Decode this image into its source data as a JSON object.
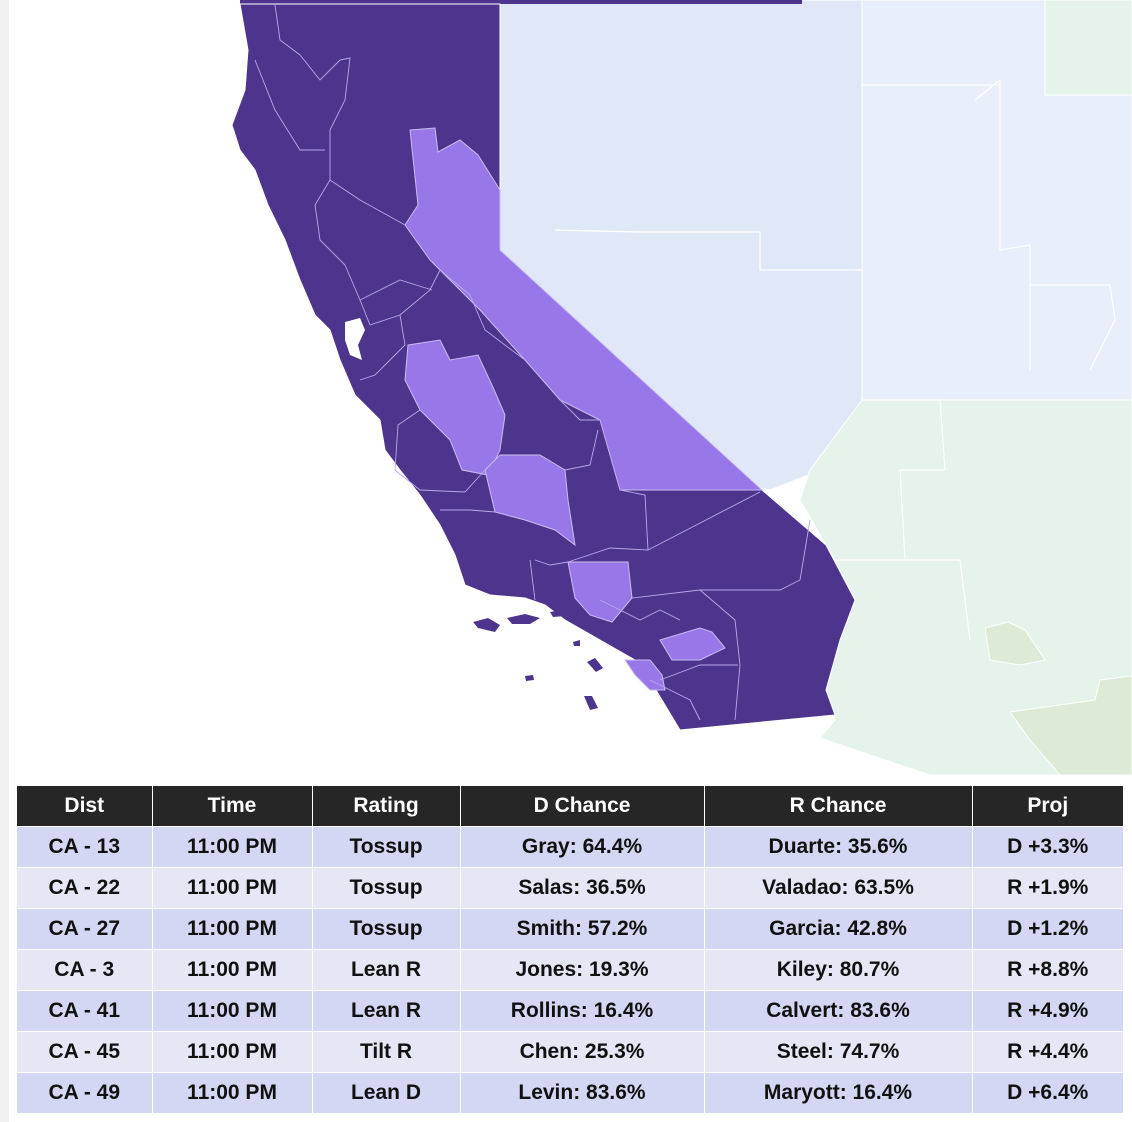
{
  "map": {
    "colors": {
      "safe_d": "#4d358d",
      "competitive": "#9878e8",
      "neighbor_state": "#e0e8f8",
      "neighbor_state_light": "#e8eefa",
      "neighbor_state_green": "#e5f3ea",
      "neighbor_county_olive": "#dcead6",
      "ocean": "#ffffff",
      "district_line": "#c9bdf0"
    }
  },
  "table": {
    "headers": [
      "Dist",
      "Time",
      "Rating",
      "D Chance",
      "R Chance",
      "Proj"
    ],
    "rows": [
      [
        "CA - 13",
        "11:00 PM",
        "Tossup",
        "Gray: 64.4%",
        "Duarte: 35.6%",
        "D +3.3%"
      ],
      [
        "CA - 22",
        "11:00 PM",
        "Tossup",
        "Salas: 36.5%",
        "Valadao: 63.5%",
        "R +1.9%"
      ],
      [
        "CA - 27",
        "11:00 PM",
        "Tossup",
        "Smith: 57.2%",
        "Garcia: 42.8%",
        "D +1.2%"
      ],
      [
        "CA - 3",
        "11:00 PM",
        "Lean R",
        "Jones: 19.3%",
        "Kiley: 80.7%",
        "R +8.8%"
      ],
      [
        "CA - 41",
        "11:00 PM",
        "Lean R",
        "Rollins: 16.4%",
        "Calvert: 83.6%",
        "R +4.9%"
      ],
      [
        "CA - 45",
        "11:00 PM",
        "Tilt R",
        "Chen: 25.3%",
        "Steel: 74.7%",
        "R +4.4%"
      ],
      [
        "CA - 49",
        "11:00 PM",
        "Lean D",
        "Levin: 83.6%",
        "Maryott: 16.4%",
        "D +6.4%"
      ]
    ]
  }
}
